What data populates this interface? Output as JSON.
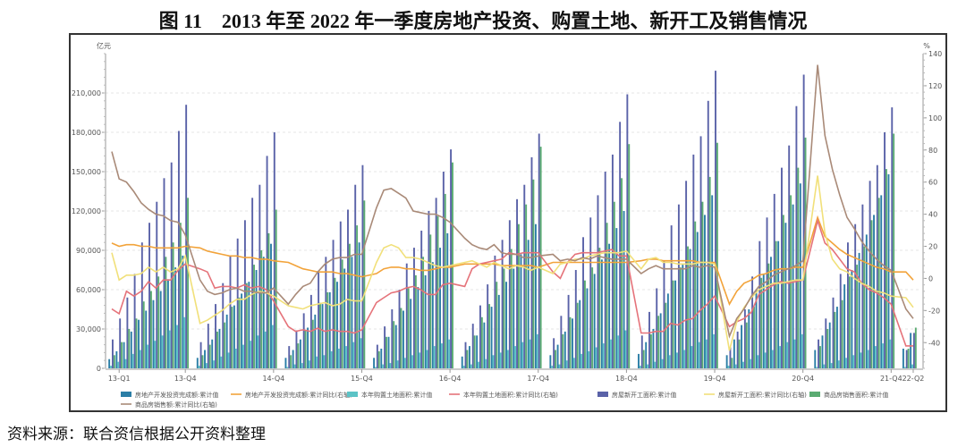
{
  "title": "图 11　2013 年至 2022 年一季度房地产投资、购置土地、新开工及销售情况",
  "source": "资料来源：联合资信根据公开资料整理",
  "chart_data": {
    "type": "bar+line",
    "left_axis": {
      "unit": "亿元",
      "range": [
        0,
        240000
      ],
      "ticks": [
        "0",
        "30,000",
        "60,000",
        "90,000",
        "120,000",
        "150,000",
        "180,000",
        "210,000"
      ],
      "tick_values": [
        0,
        30000,
        60000,
        90000,
        120000,
        150000,
        180000,
        210000
      ]
    },
    "right_axis": {
      "unit": "%",
      "range": [
        -56,
        140
      ],
      "ticks": [
        "-40",
        "-20",
        "0",
        "20",
        "40",
        "60",
        "80",
        "100",
        "120",
        "140"
      ],
      "tick_values": [
        -40,
        -20,
        0,
        20,
        40,
        60,
        80,
        100,
        120,
        140
      ]
    },
    "x_ticks": [
      {
        "label": "13-Q1",
        "year": 0,
        "month": 1
      },
      {
        "label": "13-Q4",
        "year": 0,
        "month": 10
      },
      {
        "label": "14-Q4",
        "year": 1,
        "month": 10
      },
      {
        "label": "15-Q4",
        "year": 2,
        "month": 10
      },
      {
        "label": "16-Q4",
        "year": 3,
        "month": 10
      },
      {
        "label": "17-Q4",
        "year": 4,
        "month": 10
      },
      {
        "label": "18-Q4",
        "year": 5,
        "month": 10
      },
      {
        "label": "19-Q4",
        "year": 6,
        "month": 10
      },
      {
        "label": "20-Q4",
        "year": 7,
        "month": 10
      },
      {
        "label": "21-Q4",
        "year": 8,
        "month": 10
      },
      {
        "label": "22-Q2",
        "year": 9,
        "month": 1
      }
    ],
    "grid": true,
    "legend_position": "bottom",
    "series": [
      {
        "key": "inv",
        "name": "房地产开发投资完成额:累计值",
        "kind": "bar",
        "axis": "left",
        "color": "#2b7ea6"
      },
      {
        "key": "inv_yoy",
        "name": "房地产开发投资完成额:累计同比(右轴)",
        "kind": "line",
        "axis": "right",
        "color": "#f2a33a"
      },
      {
        "key": "land",
        "name": "本年购置土地面积:累计值",
        "kind": "bar",
        "axis": "left",
        "color": "#5cc3c6"
      },
      {
        "key": "land_yoy",
        "name": "本年购置土地面积:累计同比(右轴)",
        "kind": "line",
        "axis": "right",
        "color": "#e5737a"
      },
      {
        "key": "start",
        "name": "房屋新开工面积:累计值",
        "kind": "bar",
        "axis": "left",
        "color": "#5a62a8"
      },
      {
        "key": "start_yoy",
        "name": "房屋新开工面积:累计同比(右轴)",
        "kind": "line",
        "axis": "right",
        "color": "#f1e07a"
      },
      {
        "key": "sales",
        "name": "商品房销售面积:累计值",
        "kind": "bar",
        "axis": "left",
        "color": "#5aab72"
      },
      {
        "key": "sales_yoy",
        "name": "商品房销售额:累计同比(右轴)",
        "kind": "line",
        "axis": "right",
        "color": "#a98a78"
      }
    ],
    "years": [
      {
        "year": "2013",
        "inv": [
          7000,
          13000,
          20000,
          28000,
          37000,
          44000,
          52000,
          59000,
          68000,
          77000,
          86000
        ],
        "land": [
          2000,
          5000,
          7000,
          11000,
          14000,
          18000,
          21000,
          25000,
          29000,
          33000,
          39000
        ],
        "start": [
          22000,
          38000,
          54000,
          72000,
          96000,
          111000,
          127000,
          145000,
          157000,
          181000,
          201000
        ],
        "sales": [
          10000,
          20000,
          30000,
          38000,
          51000,
          59000,
          70000,
          85000,
          96000,
          111000,
          130000
        ],
        "inv_yoy": [
          22,
          20,
          21,
          21,
          20,
          20,
          19,
          19,
          19,
          19,
          20
        ],
        "land_yoy": [
          -19,
          -22,
          -8,
          -11,
          -8,
          -2,
          -6,
          -1,
          -1,
          5,
          9
        ],
        "start_yoy": [
          16,
          -1,
          2,
          2,
          3,
          7,
          4,
          7,
          4,
          6,
          14
        ],
        "sales_yoy": [
          79,
          62,
          60,
          54,
          47,
          43,
          40,
          39,
          36,
          35,
          27
        ]
      },
      {
        "year": "2014",
        "inv": [
          8000,
          14000,
          22000,
          30000,
          41000,
          48000,
          57000,
          66000,
          75000,
          85000,
          95000
        ],
        "land": [
          2000,
          4000,
          6000,
          9000,
          12000,
          15000,
          18000,
          21000,
          25000,
          28000,
          33000
        ],
        "start": [
          20000,
          34000,
          49000,
          65000,
          86000,
          99000,
          113000,
          130000,
          140000,
          162000,
          180000
        ],
        "sales": [
          10000,
          18000,
          28000,
          35000,
          47000,
          54000,
          65000,
          79000,
          90000,
          103000,
          121000
        ],
        "inv_yoy": [
          19,
          17,
          16,
          15,
          14,
          14,
          13,
          13,
          12,
          12,
          11
        ],
        "land_yoy": [
          6,
          4,
          -6,
          -5,
          -5,
          -6,
          -4,
          -6,
          -5,
          -7,
          -14
        ],
        "start_yoy": [
          -28,
          -26,
          -23,
          -20,
          -16,
          -13,
          -13,
          -10,
          -8,
          -9,
          -11
        ],
        "sales_yoy": [
          -1,
          -8,
          -10,
          -9,
          -7,
          -6,
          -8,
          -8,
          -9,
          -9,
          -6
        ]
      },
      {
        "year": "2015",
        "inv": [
          8000,
          14000,
          22000,
          31000,
          41000,
          49000,
          58000,
          66000,
          76000,
          85000,
          96000
        ],
        "land": [
          1000,
          3000,
          4000,
          6000,
          9000,
          10000,
          13000,
          15000,
          17000,
          20000,
          23000
        ],
        "start": [
          17000,
          29000,
          42000,
          56000,
          74000,
          85000,
          98000,
          112000,
          121000,
          140000,
          155000
        ],
        "sales": [
          10000,
          19000,
          29000,
          37000,
          50000,
          58000,
          69000,
          83000,
          95000,
          109000,
          128000
        ],
        "inv_yoy": [
          10,
          8,
          6,
          5,
          4,
          4,
          4,
          3,
          3,
          2,
          1
        ],
        "land_yoy": [
          -30,
          -33,
          -32,
          -33,
          -31,
          -33,
          -32,
          -33,
          -33,
          -34,
          -32
        ],
        "start_yoy": [
          -17,
          -18,
          -19,
          -17,
          -16,
          -15,
          -17,
          -16,
          -13,
          -14,
          -14
        ],
        "sales_yoy": [
          -16,
          -10,
          -5,
          -3,
          4,
          9,
          12,
          13,
          13,
          15,
          15
        ]
      },
      {
        "year": "2016",
        "inv": [
          8000,
          15000,
          24000,
          33000,
          44000,
          53000,
          62000,
          71000,
          81000,
          92000,
          103000
        ],
        "land": [
          1000,
          3000,
          4000,
          6000,
          8000,
          10000,
          12000,
          14000,
          17000,
          19000,
          22000
        ],
        "start": [
          18000,
          32000,
          45000,
          60000,
          80000,
          92000,
          105000,
          120000,
          130000,
          150000,
          167000
        ],
        "sales": [
          13000,
          24000,
          36000,
          46000,
          61000,
          71000,
          85000,
          102000,
          116000,
          133000,
          157000
        ],
        "inv_yoy": [
          3,
          6,
          7,
          7,
          6,
          6,
          5,
          5,
          6,
          7,
          7
        ],
        "land_yoy": [
          -15,
          -12,
          -9,
          -8,
          -6,
          -5,
          -7,
          -10,
          -10,
          -4,
          -3
        ],
        "start_yoy": [
          10,
          19,
          21,
          19,
          13,
          13,
          12,
          10,
          8,
          7,
          8
        ],
        "sales_yoy": [
          44,
          55,
          56,
          53,
          50,
          42,
          41,
          40,
          40,
          38,
          35
        ]
      },
      {
        "year": "2017",
        "inv": [
          9000,
          17000,
          25000,
          35000,
          47000,
          56000,
          66000,
          76000,
          87000,
          98000,
          110000
        ],
        "land": [
          2000,
          3000,
          5000,
          7000,
          10000,
          12000,
          14000,
          17000,
          20000,
          22000,
          26000
        ],
        "start": [
          20000,
          34000,
          48000,
          64000,
          86000,
          98000,
          113000,
          129000,
          140000,
          161000,
          179000
        ],
        "sales": [
          14000,
          25000,
          39000,
          49000,
          66000,
          76000,
          91000,
          110000,
          125000,
          144000,
          169000
        ],
        "inv_yoy": [
          9,
          9,
          9,
          9,
          9,
          8,
          8,
          8,
          8,
          8,
          7
        ],
        "land_yoy": [
          -5,
          6,
          9,
          10,
          11,
          12,
          16,
          15,
          16,
          16,
          16
        ],
        "start_yoy": [
          10,
          11,
          9,
          7,
          10,
          8,
          6,
          8,
          7,
          5,
          7
        ],
        "sales_yoy": [
          25,
          21,
          19,
          18,
          21,
          16,
          15,
          15,
          13,
          13,
          14
        ]
      },
      {
        "year": "2018",
        "inv": [
          10000,
          18000,
          28000,
          38000,
          52000,
          61000,
          72000,
          83000,
          95000,
          107000,
          120000
        ],
        "land": [
          2000,
          3000,
          6000,
          8000,
          11000,
          13000,
          16000,
          19000,
          22000,
          25000,
          29000
        ],
        "start": [
          23000,
          40000,
          56000,
          75000,
          100000,
          115000,
          132000,
          150000,
          163000,
          188000,
          209000
        ],
        "sales": [
          14000,
          26000,
          39000,
          50000,
          67000,
          77000,
          92000,
          111000,
          127000,
          145000,
          171000
        ],
        "inv_yoy": [
          10,
          10,
          10,
          10,
          10,
          10,
          10,
          10,
          10,
          10,
          10
        ],
        "land_yoy": [
          4,
          0,
          10,
          15,
          16,
          16,
          16,
          17,
          18,
          14,
          14
        ],
        "start_yoy": [
          3,
          9,
          10,
          12,
          12,
          14,
          15,
          16,
          16,
          16,
          17
        ],
        "sales_yoy": [
          15,
          11,
          12,
          11,
          13,
          12,
          14,
          13,
          12,
          12,
          12
        ]
      },
      {
        "year": "2019",
        "inv": [
          11000,
          20000,
          30000,
          42000,
          57000,
          67000,
          79000,
          91000,
          104000,
          117000,
          132000
        ],
        "land": [
          2000,
          3000,
          5000,
          7000,
          10000,
          12000,
          14000,
          17000,
          20000,
          22000,
          26000
        ],
        "start": [
          25000,
          43000,
          61000,
          82000,
          109000,
          125000,
          143000,
          163000,
          177000,
          204000,
          227000
        ],
        "sales": [
          14000,
          26000,
          40000,
          50000,
          67000,
          77000,
          93000,
          112000,
          127000,
          146000,
          172000
        ],
        "inv_yoy": [
          11,
          12,
          12,
          11,
          11,
          11,
          11,
          11,
          10,
          10,
          10
        ],
        "land_yoy": [
          -34,
          -34,
          -33,
          -33,
          -28,
          -29,
          -26,
          -25,
          -20,
          -16,
          -11
        ],
        "start_yoy": [
          6,
          12,
          13,
          10,
          10,
          9,
          9,
          9,
          10,
          10,
          9
        ],
        "sales_yoy": [
          3,
          6,
          8,
          6,
          6,
          6,
          6,
          8,
          7,
          8,
          7
        ]
      },
      {
        "year": "2020",
        "inv": [
          10000,
          22000,
          33000,
          45000,
          60000,
          72000,
          85000,
          97000,
          111000,
          125000,
          141000
        ],
        "land": [
          2000,
          3000,
          5000,
          7000,
          10000,
          12000,
          14000,
          17000,
          20000,
          22000,
          26000
        ],
        "start": [
          16000,
          28000,
          45000,
          70000,
          97000,
          115000,
          133000,
          153000,
          170000,
          200000,
          224000
        ],
        "sales": [
          8000,
          22000,
          35000,
          47000,
          69000,
          80000,
          97000,
          117000,
          132000,
          153000,
          176000
        ],
        "inv_yoy": [
          -16,
          -8,
          -3,
          -1,
          2,
          3,
          5,
          6,
          6,
          7,
          7
        ],
        "land_yoy": [
          -30,
          -27,
          -25,
          -21,
          -10,
          -7,
          -4,
          -2,
          -3,
          -2,
          -1
        ],
        "start_yoy": [
          -45,
          -27,
          -18,
          -12,
          -7,
          -5,
          -3,
          -3,
          -2,
          -1,
          -1
        ],
        "sales_yoy": [
          -36,
          -25,
          -19,
          -11,
          -5,
          -2,
          2,
          4,
          6,
          8,
          11
        ]
      },
      {
        "year": "2021",
        "inv": [
          14000,
          25000,
          35000,
          47000,
          64000,
          75000,
          88000,
          102000,
          117000,
          132000,
          148000
        ],
        "land": [
          1000,
          3000,
          4000,
          6000,
          8000,
          10000,
          12000,
          14000,
          17000,
          19000,
          22000
        ],
        "start": [
          22000,
          38000,
          54000,
          72000,
          96000,
          110000,
          125000,
          143000,
          155000,
          180000,
          199000
        ],
        "sales": [
          17000,
          30000,
          43000,
          52000,
          70000,
          79000,
          93000,
          113000,
          130000,
          152000,
          179000
        ],
        "inv_yoy": [
          38,
          26,
          22,
          18,
          15,
          13,
          11,
          9,
          7,
          6,
          4
        ],
        "land_yoy": [
          36,
          22,
          18,
          12,
          6,
          4,
          -3,
          -7,
          -9,
          -12,
          -16
        ],
        "start_yoy": [
          64,
          28,
          12,
          6,
          4,
          0,
          -3,
          -5,
          -8,
          -9,
          -11
        ],
        "sales_yoy": [
          133,
          89,
          68,
          52,
          38,
          31,
          23,
          17,
          12,
          8,
          5
        ]
      },
      {
        "year": "2022",
        "inv": [
          15000,
          27000
        ],
        "land": [
          1000,
          3000
        ],
        "start": [
          14000,
          27000
        ],
        "sales": [
          15000,
          31000
        ],
        "inv_yoy": [
          4,
          -1
        ],
        "land_yoy": [
          -42,
          -42
        ],
        "start_yoy": [
          -12,
          -18
        ],
        "sales_yoy": [
          -19,
          -25
        ]
      }
    ]
  }
}
